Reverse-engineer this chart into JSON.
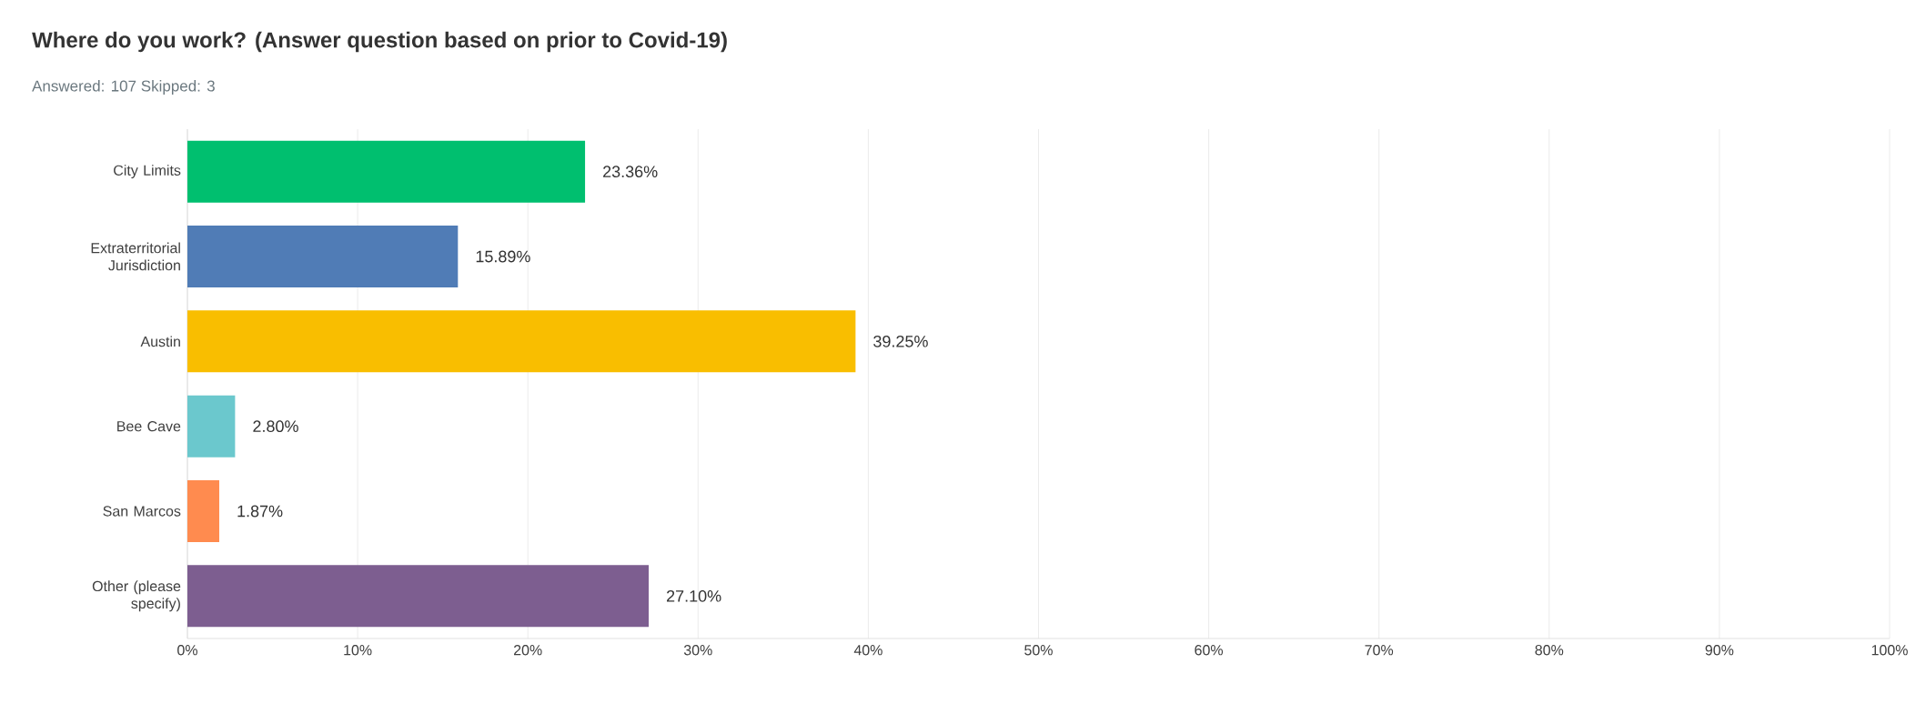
{
  "chart_data": {
    "type": "bar",
    "orientation": "horizontal",
    "title": "Where do you work? (Answer question based on prior to Covid-19)",
    "subtitle": "Answered: 107    Skipped: 3",
    "categories": [
      "City Limits",
      "Extraterritorial Jurisdiction",
      "Austin",
      "Bee Cave",
      "San Marcos",
      "Other (please specify)"
    ],
    "values": [
      23.36,
      15.89,
      39.25,
      2.8,
      1.87,
      27.1
    ],
    "value_labels": [
      "23.36%",
      "15.89%",
      "39.25%",
      "2.80%",
      "1.87%",
      "27.10%"
    ],
    "colors": [
      "#00bf6f",
      "#507cb6",
      "#f9be00",
      "#6bc8cd",
      "#ff8b4f",
      "#7d5e90"
    ],
    "xlim": [
      0,
      100
    ],
    "xticks": [
      {
        "value": 0,
        "label": "0%"
      },
      {
        "value": 10,
        "label": "10%"
      },
      {
        "value": 20,
        "label": "20%"
      },
      {
        "value": 30,
        "label": "30%"
      },
      {
        "value": 40,
        "label": "40%"
      },
      {
        "value": 50,
        "label": "50%"
      },
      {
        "value": 60,
        "label": "60%"
      },
      {
        "value": 70,
        "label": "70%"
      },
      {
        "value": 80,
        "label": "80%"
      },
      {
        "value": 90,
        "label": "90%"
      },
      {
        "value": 100,
        "label": "100%"
      }
    ],
    "grid": "x"
  }
}
